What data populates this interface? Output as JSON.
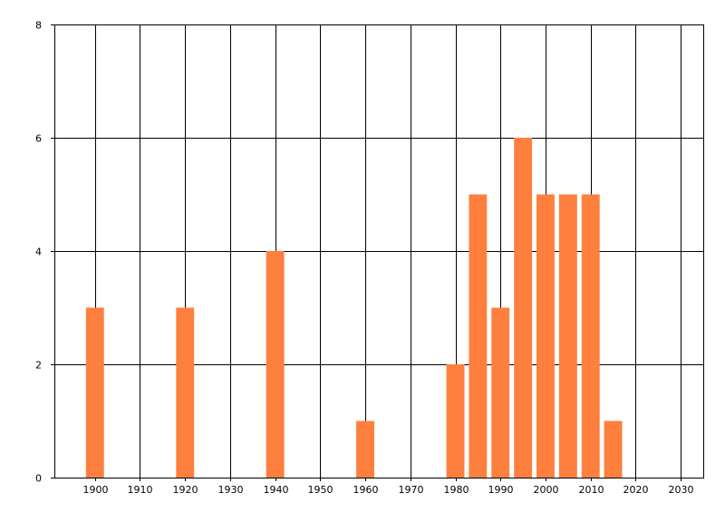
{
  "chart_data": {
    "type": "bar",
    "title": "",
    "xlabel": "",
    "ylabel": "",
    "x": [
      1900,
      1920,
      1940,
      1960,
      1980,
      1985,
      1990,
      1995,
      2000,
      2005,
      2010,
      2015
    ],
    "values": [
      3,
      3,
      4,
      1,
      2,
      5,
      3,
      6,
      5,
      5,
      5,
      1
    ],
    "bar_width_years": 4,
    "xlim": [
      1891,
      2035
    ],
    "ylim": [
      0,
      8
    ],
    "x_ticks": [
      1900,
      1910,
      1920,
      1930,
      1940,
      1950,
      1960,
      1970,
      1980,
      1990,
      2000,
      2010,
      2020,
      2030
    ],
    "y_ticks": [
      0,
      2,
      4,
      6,
      8
    ],
    "bar_color": "#ff7f3f",
    "grid": true,
    "legend": "none"
  }
}
